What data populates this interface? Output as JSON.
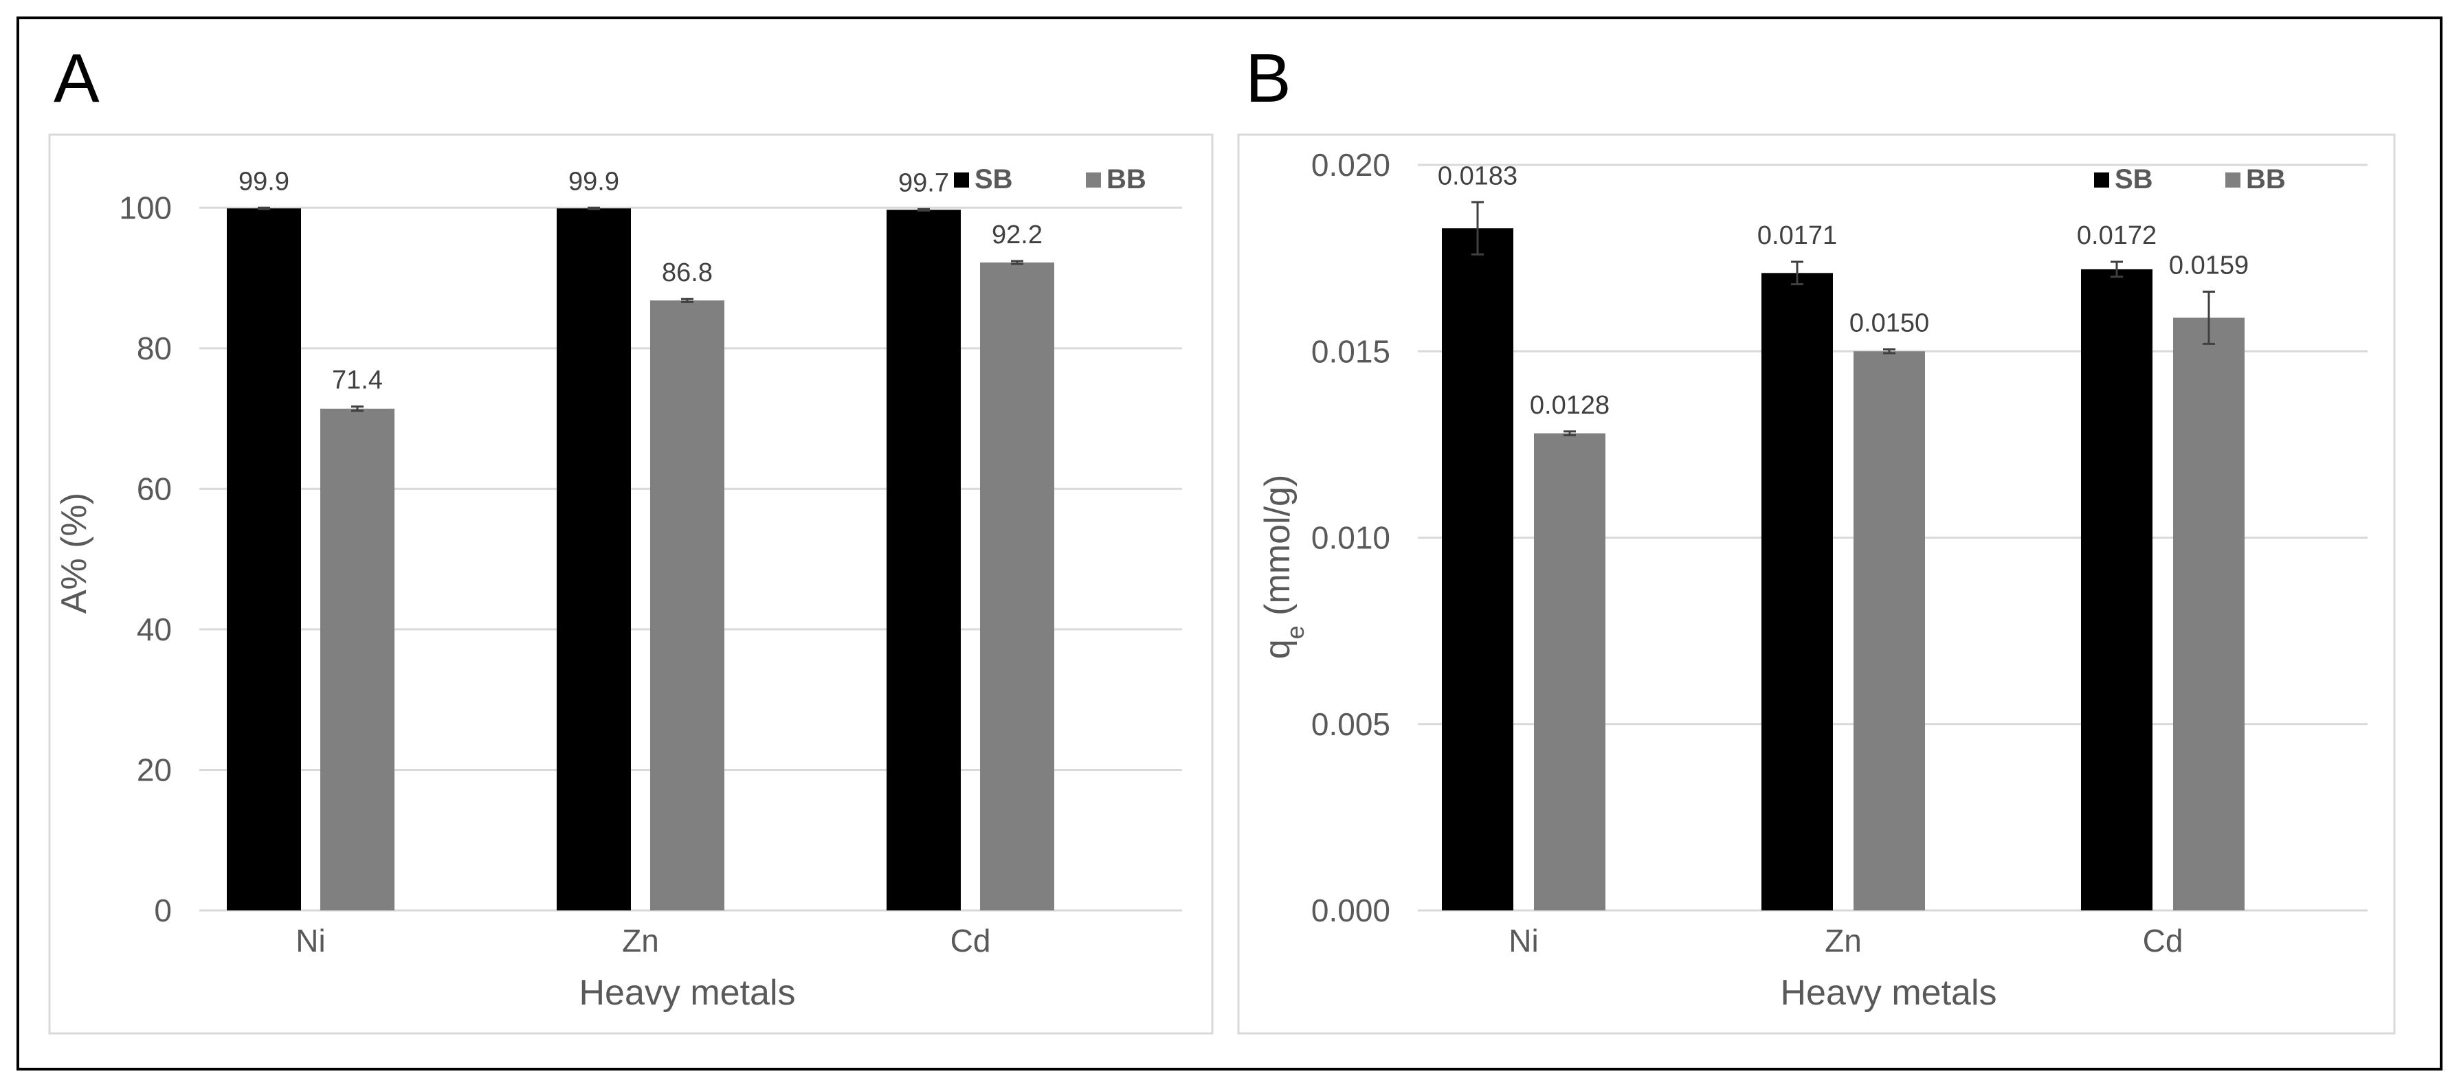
{
  "colors": {
    "SB": "#000000",
    "BB": "#808080",
    "grid": "#d9d9d9",
    "frame": "#d9d9d9",
    "outer": "#000000",
    "error_bar": "#404040"
  },
  "chart_data": [
    {
      "type": "bar",
      "panel": "A",
      "xlabel": "Heavy metals",
      "ylabel": "A% (%)",
      "ylim": [
        0,
        110
      ],
      "yticks": [
        0,
        20,
        40,
        60,
        80,
        100
      ],
      "ytick_labels": [
        "0",
        "20",
        "40",
        "60",
        "80",
        "100"
      ],
      "grid": true,
      "legend": "top-right",
      "categories": [
        "Ni",
        "Zn",
        "Cd"
      ],
      "series": [
        {
          "name": "SB",
          "values": [
            99.9,
            99.9,
            99.7
          ],
          "errors": [
            0.1,
            0.1,
            0.1
          ],
          "labels": [
            "99.9",
            "99.9",
            "99.7"
          ]
        },
        {
          "name": "BB",
          "values": [
            71.4,
            86.8,
            92.2
          ],
          "errors": [
            0.3,
            0.2,
            0.2
          ],
          "labels": [
            "71.4",
            "86.8",
            "92.2"
          ]
        }
      ]
    },
    {
      "type": "bar",
      "panel": "B",
      "xlabel": "Heavy metals",
      "ylabel_main": "q",
      "ylabel_sub": "e",
      "ylabel_unit": " (mmol/g)",
      "ylim": [
        0,
        0.02
      ],
      "yticks": [
        0,
        0.005,
        0.01,
        0.015,
        0.02
      ],
      "ytick_labels": [
        "0.000",
        "0.005",
        "0.010",
        "0.015",
        "0.020"
      ],
      "grid": true,
      "legend": "top-right",
      "categories": [
        "Ni",
        "Zn",
        "Cd"
      ],
      "series": [
        {
          "name": "SB",
          "values": [
            0.0183,
            0.0171,
            0.0172
          ],
          "errors": [
            0.0007,
            0.0003,
            0.0002
          ],
          "labels": [
            "0.0183",
            "0.0171",
            "0.0172"
          ]
        },
        {
          "name": "BB",
          "values": [
            0.0128,
            0.015,
            0.0159
          ],
          "errors": [
            5e-05,
            5e-05,
            0.0007
          ],
          "labels": [
            "0.0128",
            "0.0150",
            "0.0159"
          ]
        }
      ]
    }
  ]
}
